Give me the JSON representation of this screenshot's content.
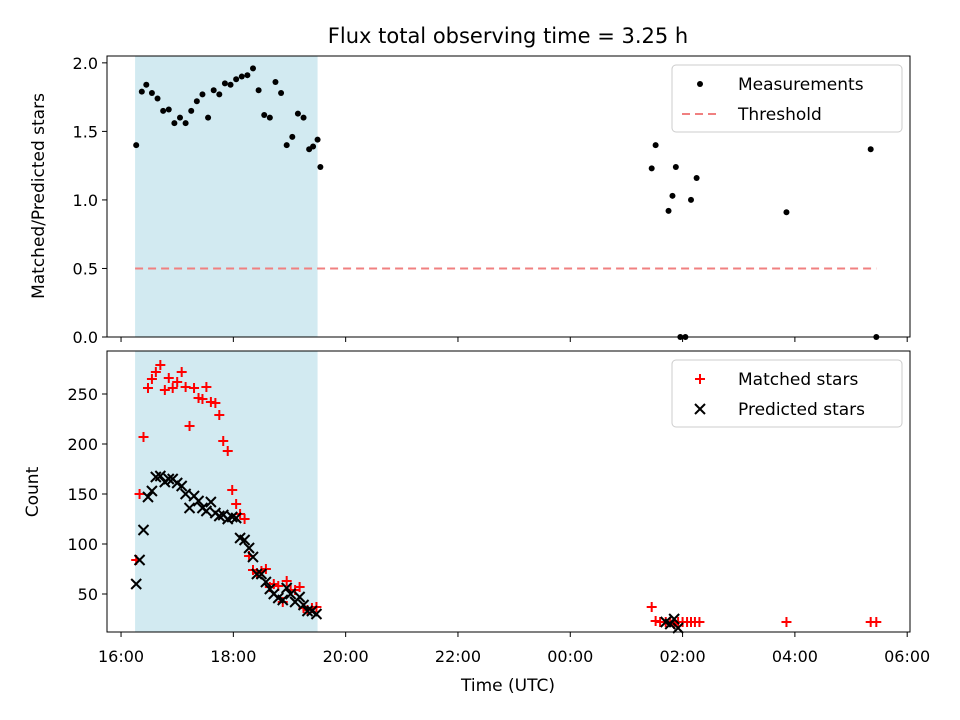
{
  "chart_data": [
    {
      "type": "scatter",
      "title": "Flux total observing time = 3.25 h",
      "xlabel": "",
      "ylabel": "Matched/Predicted stars",
      "xlim": [
        15.75,
        30.05
      ],
      "ylim": [
        0.0,
        2.05
      ],
      "yticks": [
        0.0,
        0.5,
        1.0,
        1.5,
        2.0
      ],
      "ytick_labels": [
        "0.0",
        "0.5",
        "1.0",
        "1.5",
        "2.0"
      ],
      "shaded_interval": {
        "x": [
          16.25,
          19.5
        ],
        "color": "#add8e6"
      },
      "legend": {
        "position": "top-right",
        "entries": [
          "Measurements",
          "Threshold"
        ]
      },
      "series": [
        {
          "name": "Measurements",
          "marker": "dot",
          "color": "#000000",
          "x": [
            16.27,
            16.37,
            16.45,
            16.55,
            16.65,
            16.75,
            16.85,
            16.95,
            17.05,
            17.15,
            17.25,
            17.35,
            17.45,
            17.55,
            17.65,
            17.75,
            17.85,
            17.95,
            18.05,
            18.15,
            18.25,
            18.35,
            18.45,
            18.55,
            18.65,
            18.75,
            18.85,
            18.95,
            19.05,
            19.15,
            19.25,
            19.35,
            19.42,
            19.5,
            25.45,
            25.52,
            25.75,
            25.82,
            25.88,
            25.96,
            26.05,
            26.15,
            26.25,
            27.85,
            29.35,
            29.45
          ],
          "y": [
            1.4,
            1.79,
            1.84,
            1.78,
            1.74,
            1.65,
            1.66,
            1.56,
            1.6,
            1.56,
            1.65,
            1.72,
            1.77,
            1.6,
            1.8,
            1.77,
            1.85,
            1.84,
            1.88,
            1.9,
            1.91,
            1.96,
            1.8,
            1.62,
            1.6,
            1.86,
            1.78,
            1.4,
            1.46,
            1.63,
            1.6,
            1.37,
            1.39,
            1.44,
            1.23,
            1.4,
            0.92,
            1.03,
            1.24,
            0.0,
            0.0,
            1.0,
            1.16,
            0.91,
            1.37,
            0.0
          ],
          "x_extra": [
            19.55
          ],
          "y_extra": [
            1.24
          ]
        },
        {
          "name": "Threshold",
          "line": "dashed",
          "color": "#f08080",
          "x": [
            16.25,
            29.45
          ],
          "y": [
            0.5,
            0.5
          ]
        }
      ]
    },
    {
      "type": "scatter",
      "title": "",
      "xlabel": "Time (UTC)",
      "ylabel": "Count",
      "xlim": [
        15.75,
        30.05
      ],
      "ylim": [
        12,
        293
      ],
      "xticks": [
        16,
        18,
        20,
        22,
        24,
        26,
        28,
        30
      ],
      "xtick_labels": [
        "16:00",
        "18:00",
        "20:00",
        "22:00",
        "00:00",
        "02:00",
        "04:00",
        "06:00"
      ],
      "yticks": [
        50,
        100,
        150,
        200,
        250
      ],
      "ytick_labels": [
        "50",
        "100",
        "150",
        "200",
        "250"
      ],
      "shaded_interval": {
        "x": [
          16.25,
          19.5
        ],
        "color": "#add8e6"
      },
      "legend": {
        "position": "top-right",
        "entries": [
          "Matched stars",
          "Predicted stars"
        ]
      },
      "series": [
        {
          "name": "Matched stars",
          "marker": "plus",
          "color": "#ff0000",
          "x": [
            16.27,
            16.33,
            16.4,
            16.48,
            16.55,
            16.62,
            16.7,
            16.78,
            16.85,
            16.92,
            17.0,
            17.08,
            17.15,
            17.22,
            17.3,
            17.38,
            17.45,
            17.52,
            17.6,
            17.68,
            17.75,
            17.82,
            17.9,
            17.98,
            18.05,
            18.12,
            18.2,
            18.28,
            18.35,
            18.42,
            18.5,
            18.58,
            18.65,
            18.72,
            18.8,
            18.88,
            18.95,
            19.02,
            19.1,
            19.18,
            19.25,
            19.32,
            19.4,
            19.48,
            25.45,
            25.52,
            25.6,
            25.7,
            25.78,
            25.85,
            25.92,
            26.0,
            26.08,
            26.15,
            26.22,
            26.3,
            27.85,
            29.35,
            29.45
          ],
          "y": [
            84,
            150,
            207,
            256,
            265,
            272,
            279,
            254,
            266,
            256,
            262,
            272,
            257,
            218,
            256,
            246,
            245,
            257,
            242,
            241,
            229,
            203,
            193,
            154,
            140,
            130,
            125,
            88,
            74,
            71,
            73,
            75,
            57,
            60,
            58,
            42,
            63,
            54,
            54,
            57,
            36,
            34,
            36,
            37,
            37,
            23,
            22,
            22,
            22,
            20,
            22,
            22,
            22,
            22,
            22,
            22,
            22,
            22,
            22
          ],
          "x_fix": [
            16.27,
            16.33,
            16.4,
            16.48,
            16.55,
            16.62,
            16.7,
            16.78,
            16.85,
            16.92,
            17.0,
            17.08,
            17.15,
            17.22,
            17.3,
            17.38,
            17.45,
            17.52,
            17.6,
            17.68,
            17.75,
            17.82,
            17.9,
            17.98,
            18.05,
            18.12,
            18.2,
            18.28,
            18.35,
            18.42,
            18.5,
            18.58,
            18.65,
            18.72,
            18.8,
            18.88,
            18.95,
            19.02,
            19.1,
            19.18,
            19.25,
            19.32,
            19.4,
            19.48,
            25.45,
            25.52,
            25.6,
            25.7,
            25.78,
            25.85,
            25.92,
            26.0,
            26.08,
            26.15,
            26.22,
            26.3,
            27.85,
            29.35,
            29.45
          ]
        },
        {
          "name": "Predicted stars",
          "marker": "x",
          "color": "#000000",
          "x": [
            16.27,
            16.33,
            16.4,
            16.48,
            16.55,
            16.62,
            16.7,
            16.78,
            16.85,
            16.92,
            17.0,
            17.08,
            17.15,
            17.22,
            17.3,
            17.38,
            17.45,
            17.52,
            17.6,
            17.68,
            17.75,
            17.82,
            17.9,
            17.98,
            18.05,
            18.12,
            18.2,
            18.28,
            18.35,
            18.42,
            18.5,
            18.58,
            18.65,
            18.72,
            18.8,
            18.88,
            18.95,
            19.02,
            19.1,
            19.18,
            19.25,
            19.32,
            19.4,
            19.48,
            25.7,
            25.78,
            25.85,
            25.92
          ],
          "y": [
            60,
            84,
            114,
            147,
            153,
            167,
            168,
            162,
            165,
            165,
            161,
            158,
            150,
            136,
            148,
            143,
            136,
            133,
            142,
            131,
            128,
            129,
            125,
            127,
            126,
            106,
            104,
            96,
            87,
            70,
            70,
            62,
            55,
            50,
            46,
            44,
            56,
            50,
            42,
            47,
            39,
            33,
            33,
            30,
            22,
            20,
            25,
            16
          ]
        }
      ]
    }
  ]
}
